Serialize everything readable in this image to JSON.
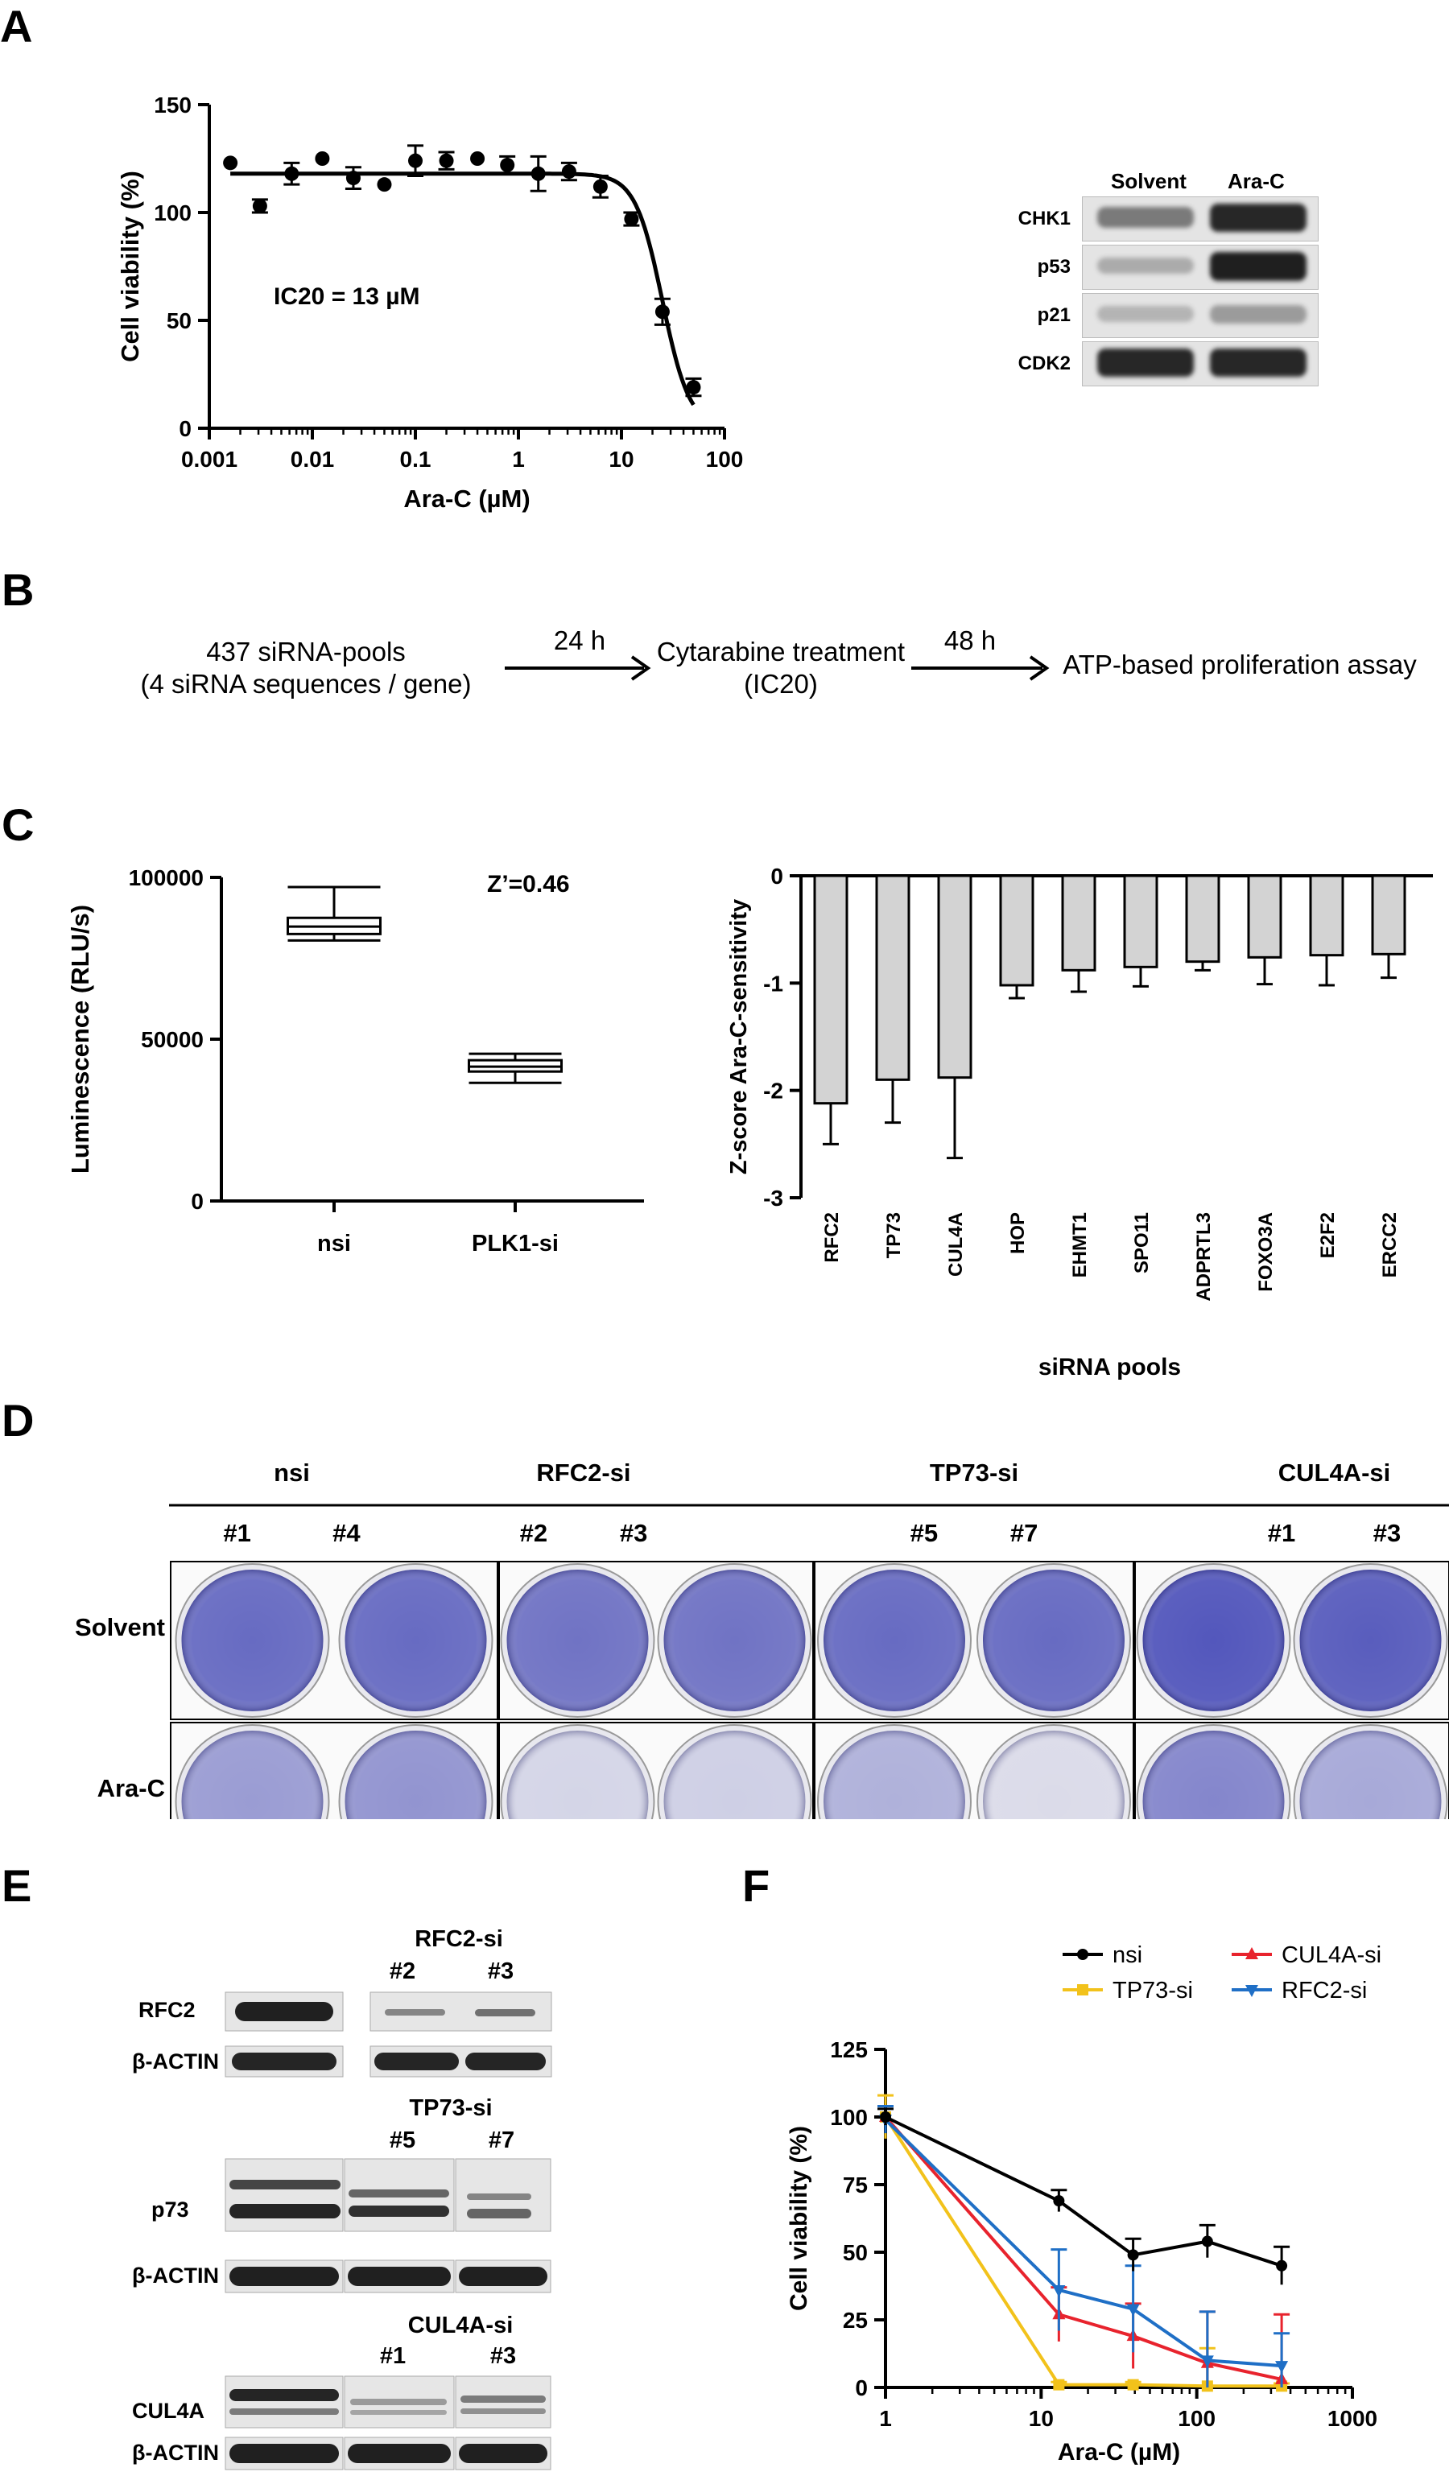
{
  "panels": {
    "a": "A",
    "b": "B",
    "c": "C",
    "d": "D",
    "e": "E",
    "f": "F"
  },
  "panelA": {
    "annotation": "IC20 = 13 µM",
    "blot": {
      "columns": [
        "Solvent",
        "Ara-C"
      ],
      "rows": [
        {
          "label": "CHK1",
          "solvent": 0.45,
          "arac": 0.95
        },
        {
          "label": "p53",
          "solvent": 0.15,
          "arac": 1.0
        },
        {
          "label": "p21",
          "solvent": 0.1,
          "arac": 0.25
        },
        {
          "label": "CDK2",
          "solvent": 0.95,
          "arac": 0.95
        }
      ]
    }
  },
  "panelB": {
    "step1_line1": "437 siRNA-pools",
    "step1_line2": "(4 siRNA sequences / gene)",
    "arrow1": "24 h",
    "step2_line1": "Cytarabine treatment",
    "step2_line2": "(IC20)",
    "arrow2": "48 h",
    "step3": "ATP-based proliferation assay"
  },
  "panelC": {
    "zprime": "Z’=0.46"
  },
  "panelD": {
    "groups": [
      {
        "label": "nsi",
        "clones": [
          "#1",
          "#4"
        ]
      },
      {
        "label": "RFC2-si",
        "clones": [
          "#2",
          "#3"
        ]
      },
      {
        "label": "TP73-si",
        "clones": [
          "#5",
          "#7"
        ]
      },
      {
        "label": "CUL4A-si",
        "clones": [
          "#1",
          "#3"
        ]
      }
    ],
    "rows": [
      "Solvent",
      "Ara-C"
    ],
    "intensity": [
      [
        0.85,
        0.85,
        0.8,
        0.8,
        0.85,
        0.85,
        1.0,
        0.95
      ],
      [
        0.5,
        0.55,
        0.08,
        0.12,
        0.35,
        0.03,
        0.65,
        0.4
      ]
    ]
  },
  "panelE": {
    "rfc2": {
      "header": "RFC2-si",
      "clones": [
        "#2",
        "#3"
      ],
      "label": "RFC2",
      "actin": "β-ACTIN"
    },
    "tp73": {
      "header": "TP73-si",
      "clones": [
        "#5",
        "#7"
      ],
      "label": "p73",
      "actin": "β-ACTIN"
    },
    "cul4a": {
      "header": "CUL4A-si",
      "clones": [
        "#1",
        "#3"
      ],
      "label": "CUL4A",
      "actin": "β-ACTIN"
    }
  },
  "colors": {
    "nsi": "#000000",
    "tp73": "#f2c21b",
    "cul4a": "#e8232d",
    "rfc2": "#1f6fc6",
    "bar_fill": "#d3d3d3",
    "stain": "#4b4fb8"
  },
  "chart_data": [
    {
      "id": "A-dose",
      "type": "scatter",
      "xlabel": "Ara-C (µM)",
      "ylabel": "Cell viability (%)",
      "xscale": "log",
      "xlim": [
        0.001,
        100
      ],
      "ylim": [
        0,
        150
      ],
      "xticks": [
        "0.001",
        "0.01",
        "0.1",
        "1",
        "10",
        "100"
      ],
      "yticks": [
        "0",
        "50",
        "100",
        "150"
      ],
      "x": [
        0.0016,
        0.0031,
        0.0063,
        0.0125,
        0.025,
        0.05,
        0.1,
        0.2,
        0.4,
        0.78,
        1.56,
        3.1,
        6.25,
        12.5,
        25,
        50
      ],
      "y": [
        123,
        103,
        118,
        125,
        116,
        113,
        124,
        124,
        125,
        122,
        118,
        119,
        112,
        97,
        54,
        19
      ],
      "err": [
        0,
        3,
        5,
        0,
        5,
        0,
        7,
        4,
        0,
        4,
        8,
        4,
        5,
        3,
        6,
        4
      ],
      "fit": {
        "top": 118,
        "bottom": 0,
        "ec50": 25,
        "hill": 3.3
      }
    },
    {
      "id": "C-box",
      "type": "box",
      "ylabel": "Luminescence (RLU/s)",
      "ylim": [
        0,
        100000
      ],
      "yticks": [
        "0",
        "50000",
        "100000"
      ],
      "categories": [
        "nsi",
        "PLK1-si"
      ],
      "boxes": [
        {
          "min": 80500,
          "q1": 82500,
          "median": 84800,
          "q3": 87500,
          "max": 97000
        },
        {
          "min": 36500,
          "q1": 40000,
          "median": 41500,
          "q3": 43500,
          "max": 45500
        }
      ]
    },
    {
      "id": "C-bar",
      "type": "bar",
      "xlabel": "siRNA pools",
      "ylabel": "Z-score Ara-C-sensitivity",
      "ylim": [
        -3,
        0
      ],
      "yticks": [
        "0",
        "-1",
        "-2",
        "-3"
      ],
      "categories": [
        "RFC2",
        "TP73",
        "CUL4A",
        "HOP",
        "EHMT1",
        "SPO11",
        "ADPRTL3",
        "FOXO3A",
        "E2F2",
        "ERCC2"
      ],
      "values": [
        -2.12,
        -1.9,
        -1.88,
        -1.02,
        -0.88,
        -0.85,
        -0.8,
        -0.76,
        -0.74,
        -0.73
      ],
      "err": [
        0.38,
        0.4,
        0.75,
        0.12,
        0.2,
        0.18,
        0.08,
        0.25,
        0.28,
        0.22
      ]
    },
    {
      "id": "F-lines",
      "type": "line",
      "xlabel": "Ara-C (µM)",
      "ylabel": "Cell viability (%)",
      "xscale": "log",
      "xlim": [
        1,
        1000
      ],
      "ylim": [
        0,
        125
      ],
      "xticks": [
        "1",
        "10",
        "100",
        "1000"
      ],
      "yticks": [
        "0",
        "25",
        "50",
        "75",
        "100",
        "125"
      ],
      "x": [
        1,
        13,
        39,
        117,
        351
      ],
      "series": [
        {
          "name": "nsi",
          "values": [
            100,
            69,
            49,
            54,
            45
          ],
          "err": [
            3,
            4,
            6,
            6,
            7
          ]
        },
        {
          "name": "TP73-si",
          "values": [
            100,
            1,
            1,
            0.5,
            0.5
          ],
          "err": [
            8,
            1,
            1,
            14,
            1
          ]
        },
        {
          "name": "CUL4A-si",
          "values": [
            100,
            27,
            19,
            9,
            3
          ],
          "err": [
            4,
            10,
            12,
            19,
            24
          ]
        },
        {
          "name": "RFC2-si",
          "values": [
            99,
            36,
            29,
            10,
            8
          ],
          "err": [
            5,
            15,
            16,
            18,
            12
          ]
        }
      ]
    }
  ]
}
